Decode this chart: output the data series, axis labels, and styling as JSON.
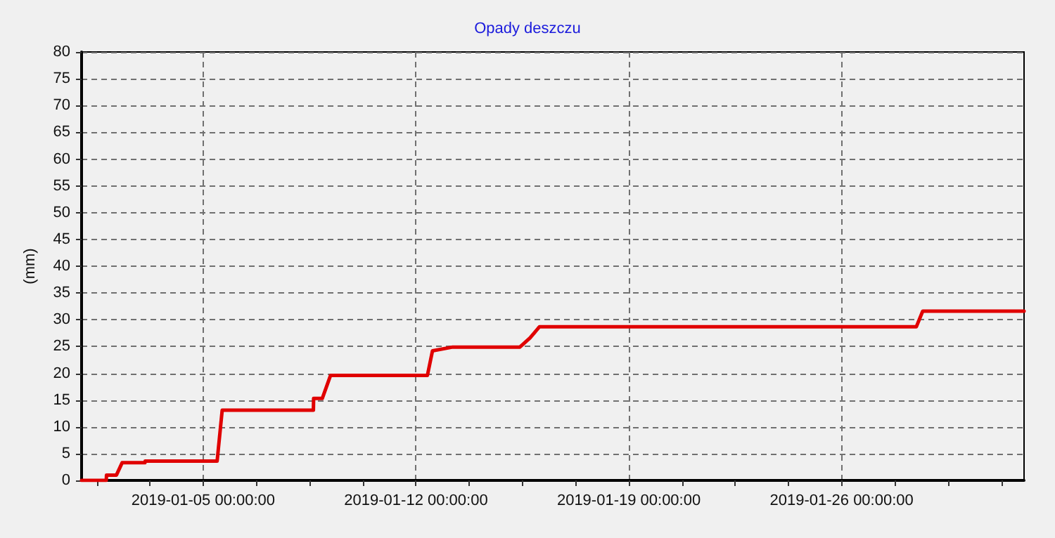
{
  "chart_data": {
    "type": "line",
    "title": "Opady deszczu",
    "ylabel": "(mm)",
    "x": [
      "2019-01-01T00:00",
      "2019-01-01T19:30",
      "2019-01-01T19:40",
      "2019-01-02T03:30",
      "2019-01-02T08:00",
      "2019-01-03T02:00",
      "2019-01-03T02:10",
      "2019-01-05T11:00",
      "2019-01-05T15:00",
      "2019-01-08T15:00",
      "2019-01-08T15:10",
      "2019-01-08T22:00",
      "2019-01-09T04:30",
      "2019-01-12T09:00",
      "2019-01-12T13:00",
      "2019-01-13T05:00",
      "2019-01-15T10:00",
      "2019-01-15T18:00",
      "2019-01-16T01:30",
      "2019-01-28T11:00",
      "2019-01-28T16:00",
      "2019-02-01T00:00"
    ],
    "series": [
      {
        "color": "#e00000",
        "values": [
          0,
          0,
          1,
          1,
          3.3,
          3.3,
          3.6,
          3.6,
          13.1,
          13.1,
          15.3,
          15.3,
          19.6,
          19.6,
          24.2,
          24.9,
          24.9,
          26.6,
          28.7,
          28.7,
          31.6,
          31.6
        ]
      }
    ],
    "xlim": [
      "2019-01-01",
      "2019-02-01"
    ],
    "xticks": [
      {
        "value": "2019-01-01T12:00",
        "label": null
      },
      {
        "value": "2019-01-03T06:00",
        "label": null
      },
      {
        "value": "2019-01-05",
        "label": "2019-01-05 00:00:00"
      },
      {
        "value": "2019-01-06T18:00",
        "label": null
      },
      {
        "value": "2019-01-08T12:00",
        "label": null
      },
      {
        "value": "2019-01-10T06:00",
        "label": null
      },
      {
        "value": "2019-01-12",
        "label": "2019-01-12 00:00:00"
      },
      {
        "value": "2019-01-13T18:00",
        "label": null
      },
      {
        "value": "2019-01-15T12:00",
        "label": null
      },
      {
        "value": "2019-01-17T06:00",
        "label": null
      },
      {
        "value": "2019-01-19",
        "label": "2019-01-19 00:00:00"
      },
      {
        "value": "2019-01-20T18:00",
        "label": null
      },
      {
        "value": "2019-01-22T12:00",
        "label": null
      },
      {
        "value": "2019-01-24T06:00",
        "label": null
      },
      {
        "value": "2019-01-26",
        "label": "2019-01-26 00:00:00"
      },
      {
        "value": "2019-01-27T18:00",
        "label": null
      },
      {
        "value": "2019-01-29T12:00",
        "label": null
      },
      {
        "value": "2019-01-31T06:00",
        "label": null
      }
    ],
    "ylim": [
      0,
      80
    ],
    "yticks": [
      0,
      5,
      10,
      15,
      20,
      25,
      30,
      35,
      40,
      45,
      50,
      55,
      60,
      65,
      70,
      75,
      80
    ],
    "grid": true,
    "marker": "none",
    "line_style": "solid"
  }
}
